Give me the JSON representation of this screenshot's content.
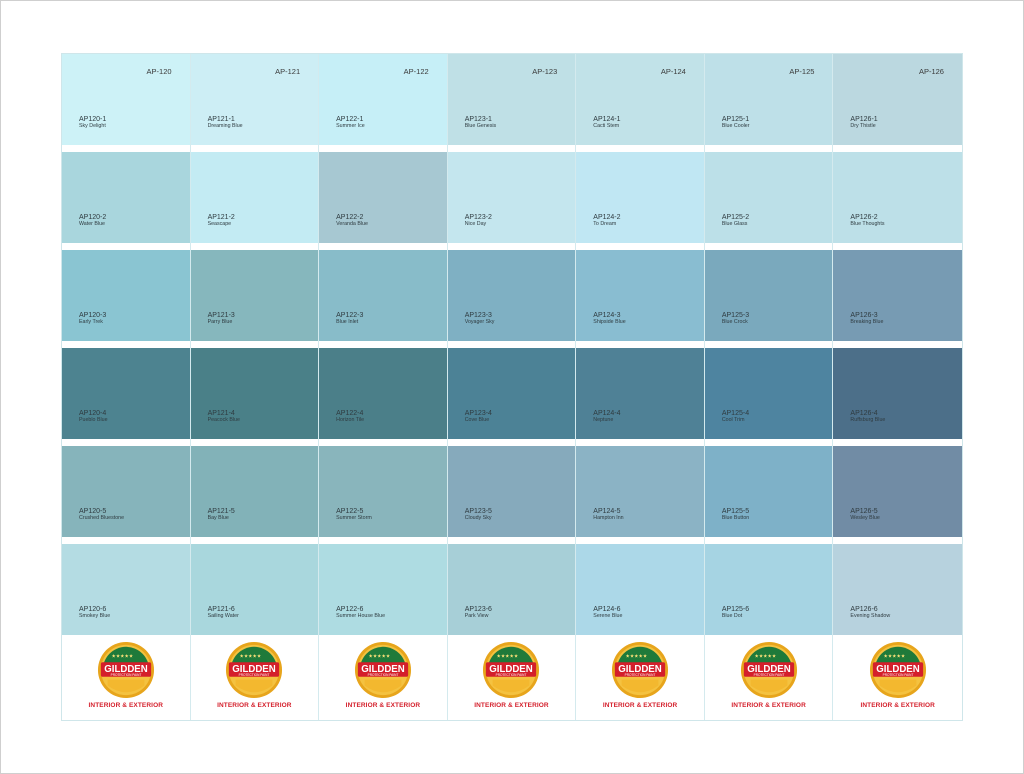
{
  "brand": {
    "name": "GILDDEN",
    "subtitle": "PROTECTION PAINT",
    "tagline": "INTERIOR & EXTERIOR",
    "colors": {
      "red": "#d41f2b",
      "green": "#1f7a3a",
      "gold": "#e7a51c"
    }
  },
  "columns": [
    {
      "code": "AP-120",
      "chips": [
        {
          "code": "AP120-1",
          "name": "Sky Delight",
          "color": "#cdf2f7"
        },
        {
          "code": "AP120-2",
          "name": "Water Blue",
          "color": "#a9d6dd"
        },
        {
          "code": "AP120-3",
          "name": "Early Trek",
          "color": "#8ac5d2"
        },
        {
          "code": "AP120-4",
          "name": "Pueblo Blue",
          "color": "#4d8390"
        },
        {
          "code": "AP120-5",
          "name": "Crushed Bluestone",
          "color": "#86b4bb"
        },
        {
          "code": "AP120-6",
          "name": "Smokey Blue",
          "color": "#b4dce3"
        }
      ]
    },
    {
      "code": "AP-121",
      "chips": [
        {
          "code": "AP121-1",
          "name": "Dreaming Blue",
          "color": "#cdeef5"
        },
        {
          "code": "AP121-2",
          "name": "Seascape",
          "color": "#c3ebf3"
        },
        {
          "code": "AP121-3",
          "name": "Parry Blue",
          "color": "#86b7bd"
        },
        {
          "code": "AP121-4",
          "name": "Peacock Blue",
          "color": "#4a8088"
        },
        {
          "code": "AP121-5",
          "name": "Bay Blue",
          "color": "#82b2b8"
        },
        {
          "code": "AP121-6",
          "name": "Sailing Water",
          "color": "#a9d7dd"
        }
      ]
    },
    {
      "code": "AP-122",
      "chips": [
        {
          "code": "AP122-1",
          "name": "Summer Ice",
          "color": "#c6eff7"
        },
        {
          "code": "AP122-2",
          "name": "Veranda Blue",
          "color": "#a7c8d2"
        },
        {
          "code": "AP122-3",
          "name": "Blue Inlet",
          "color": "#88bcc9"
        },
        {
          "code": "AP122-4",
          "name": "Horizon Tile",
          "color": "#4b7f89"
        },
        {
          "code": "AP122-5",
          "name": "Summer Storm",
          "color": "#89b5bc"
        },
        {
          "code": "AP122-6",
          "name": "Summer House Blue",
          "color": "#aedce2"
        }
      ]
    },
    {
      "code": "AP-123",
      "chips": [
        {
          "code": "AP123-1",
          "name": "Blue Genesis",
          "color": "#bfe0e6"
        },
        {
          "code": "AP123-2",
          "name": "Nice Day",
          "color": "#c4e6ee"
        },
        {
          "code": "AP123-3",
          "name": "Voyager Sky",
          "color": "#7fb0c3"
        },
        {
          "code": "AP123-4",
          "name": "Cove Blue",
          "color": "#4c8296"
        },
        {
          "code": "AP123-5",
          "name": "Cloudy Sky",
          "color": "#86aabc"
        },
        {
          "code": "AP123-6",
          "name": "Park View",
          "color": "#a7cfd7"
        }
      ]
    },
    {
      "code": "AP-124",
      "chips": [
        {
          "code": "AP124-1",
          "name": "Cacti Stem",
          "color": "#c1e2e8"
        },
        {
          "code": "AP124-2",
          "name": "To Dream",
          "color": "#c0e7f3"
        },
        {
          "code": "AP124-3",
          "name": "Shipside Blue",
          "color": "#89bdd1"
        },
        {
          "code": "AP124-4",
          "name": "Neptune",
          "color": "#4f8196"
        },
        {
          "code": "AP124-5",
          "name": "Hampton Inn",
          "color": "#8bb3c5"
        },
        {
          "code": "AP124-6",
          "name": "Serene Blue",
          "color": "#acd8e8"
        }
      ]
    },
    {
      "code": "AP-125",
      "chips": [
        {
          "code": "AP125-1",
          "name": "Blue Cooler",
          "color": "#bee0e8"
        },
        {
          "code": "AP125-2",
          "name": "Blue Glass",
          "color": "#bce0e8"
        },
        {
          "code": "AP125-3",
          "name": "Blue Crock",
          "color": "#7aa9bd"
        },
        {
          "code": "AP125-4",
          "name": "Cool Trim",
          "color": "#4e84a0"
        },
        {
          "code": "AP125-5",
          "name": "Blue Button",
          "color": "#7eb1c8"
        },
        {
          "code": "AP125-6",
          "name": "Blue Dot",
          "color": "#a6d4e3"
        }
      ]
    },
    {
      "code": "AP-126",
      "chips": [
        {
          "code": "AP126-1",
          "name": "Dry Thistle",
          "color": "#bbd8e0"
        },
        {
          "code": "AP126-2",
          "name": "Blue Thoughts",
          "color": "#bde0e8"
        },
        {
          "code": "AP126-3",
          "name": "Breaking Blue",
          "color": "#779bb3"
        },
        {
          "code": "AP126-4",
          "name": "Ruffsburg Blue",
          "color": "#4c6f89"
        },
        {
          "code": "AP126-5",
          "name": "Wesley Blue",
          "color": "#718ca5"
        },
        {
          "code": "AP126-6",
          "name": "Evening Shadow",
          "color": "#b7d2de"
        }
      ]
    }
  ]
}
